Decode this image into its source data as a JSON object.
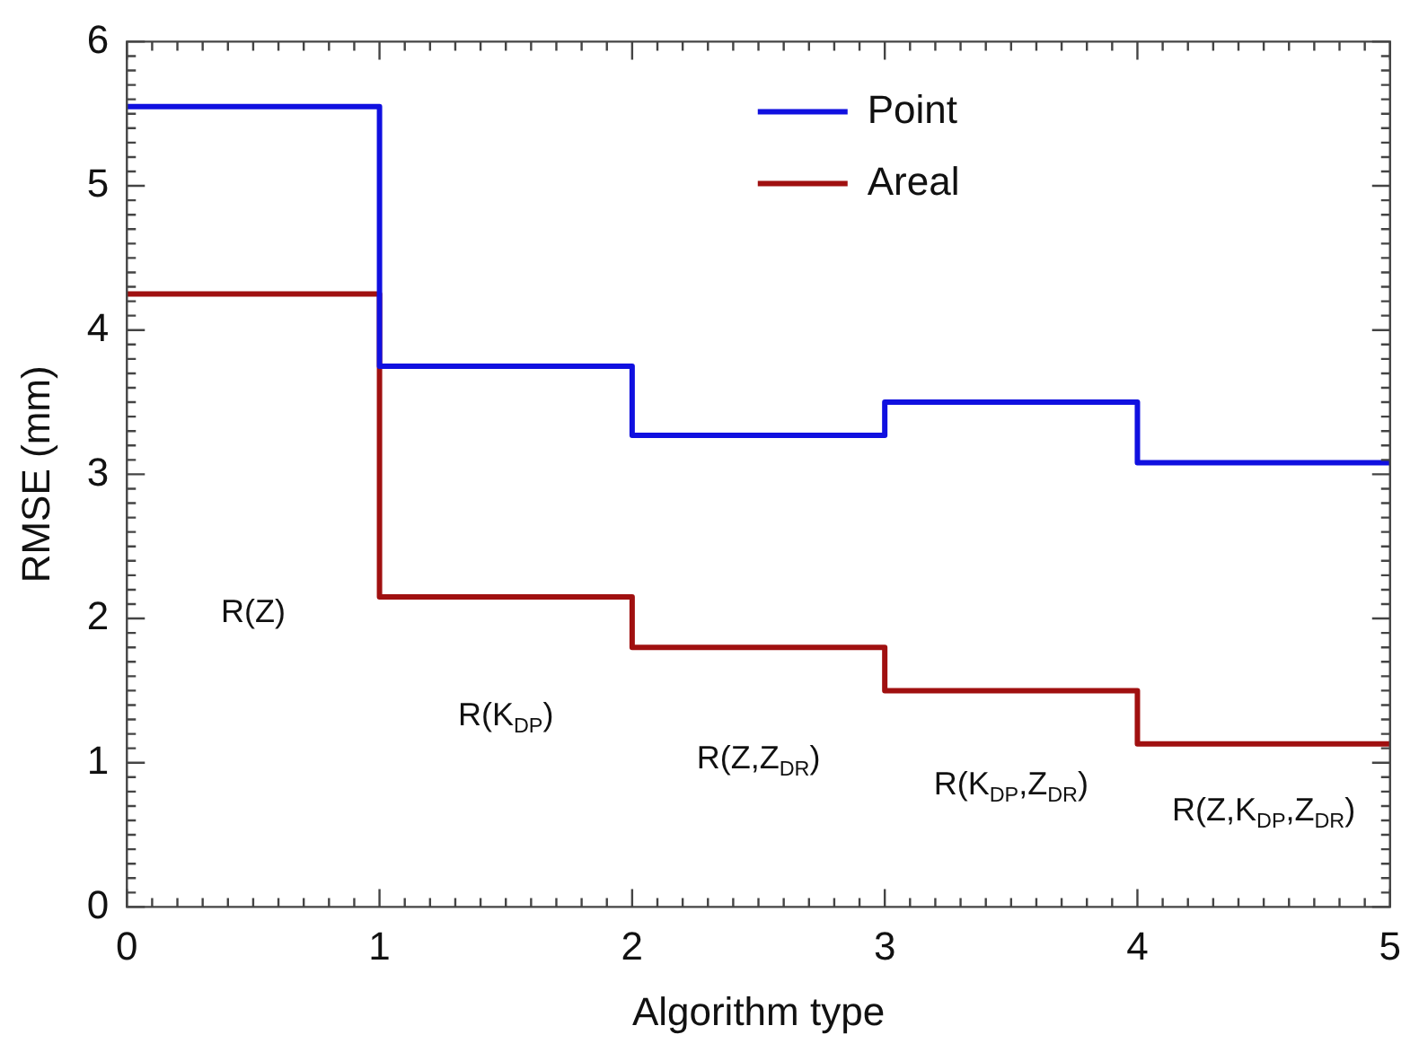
{
  "chart_data": {
    "type": "step",
    "xlabel": "Algorithm type",
    "ylabel": "RMSE (mm)",
    "x": [
      0,
      1,
      2,
      3,
      4,
      5
    ],
    "series": [
      {
        "name": "Point",
        "color": "#1010e0",
        "values": [
          5.55,
          3.75,
          3.27,
          3.5,
          3.08,
          3.08
        ]
      },
      {
        "name": "Areal",
        "color": "#a01010",
        "values": [
          4.25,
          2.15,
          1.8,
          1.5,
          1.13,
          1.13
        ]
      }
    ],
    "xlim": [
      0,
      5
    ],
    "xticks": [
      0,
      1,
      2,
      3,
      4,
      5
    ],
    "ylim": [
      0,
      6
    ],
    "yticks": [
      0,
      1,
      2,
      3,
      4,
      5,
      6
    ],
    "grid": false,
    "legend": "top right",
    "marker": "none",
    "line_style": "solid",
    "annotations": [
      "R(Z)",
      "R(K$_{DP}$)",
      "R(Z,Z$_{DR}$)",
      "R(K$_{DP}$,Z$_{DR}$)",
      "R(Z,K$_{DP}$,Z$_{DR}$)"
    ]
  }
}
